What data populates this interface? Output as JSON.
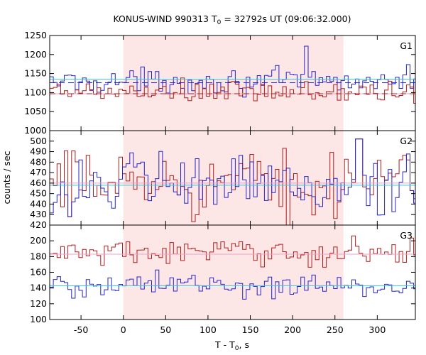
{
  "chart_data": {
    "type": "line",
    "title_main": "KONUS-WIND 990313 T",
    "title_sub": "0",
    "title_rest": " = 32792s UT (09:06:32.000)",
    "xlabel_main": "T - T",
    "xlabel_sub": "0",
    "xlabel_rest": ", s",
    "ylabel": "counts / sec",
    "xlim": [
      -87,
      345
    ],
    "xticks": [
      "-50",
      "0",
      "50",
      "100",
      "150",
      "200",
      "250",
      "300"
    ],
    "bin_width_s": 4.3,
    "shaded_interval": [
      0,
      260
    ],
    "colors": {
      "shade": "#fde6e6",
      "red_series": "#b01c1c",
      "blue_series": "#2424c8",
      "cyan_level": "#3cc6d8",
      "pink_level": "#f0a0c8"
    },
    "panels": [
      {
        "name": "G1",
        "ylim": [
          1000,
          1250
        ],
        "yticks": [
          "1000",
          "1050",
          "1100",
          "1150",
          "1200",
          "1250"
        ],
        "series": [
          {
            "color": "blue",
            "mean": 1130,
            "amplitude": 42,
            "level_line": 1135
          },
          {
            "color": "red",
            "mean": 1100,
            "amplitude": 42,
            "level_line": 1097
          }
        ],
        "reference_lines": [
          1135,
          1126,
          1097
        ],
        "notable": [
          {
            "x": 213,
            "y": 1222
          }
        ]
      },
      {
        "name": "G2",
        "ylim": [
          420,
          510
        ],
        "yticks": [
          "420",
          "430",
          "440",
          "450",
          "460",
          "470",
          "480",
          "490",
          "500"
        ],
        "series": [
          {
            "color": "red",
            "mean": 460,
            "amplitude": 40,
            "level_line": 460
          },
          {
            "color": "blue",
            "mean": 458,
            "amplitude": 40,
            "level_line": 458
          }
        ],
        "reference_lines": [
          460,
          458
        ],
        "notable": [
          {
            "x": 276,
            "y": 502
          },
          {
            "x": -65,
            "y": 428
          }
        ]
      },
      {
        "name": "G3",
        "ylim": [
          100,
          220
        ],
        "yticks": [
          "100",
          "120",
          "140",
          "160",
          "180",
          "200"
        ],
        "series": [
          {
            "color": "red",
            "mean": 185,
            "amplitude": 22,
            "level_line": 183
          },
          {
            "color": "blue",
            "mean": 143,
            "amplitude": 22,
            "level_line": 143
          }
        ],
        "reference_lines": [
          183,
          143
        ],
        "notable": []
      }
    ]
  }
}
